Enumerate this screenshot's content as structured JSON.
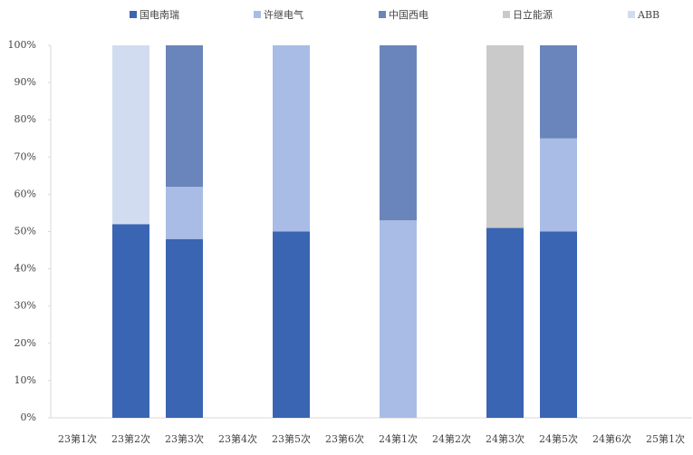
{
  "chart_data": {
    "type": "stacked_bar",
    "categories": [
      "23第1次",
      "23第2次",
      "23第3次",
      "23第4次",
      "23第5次",
      "23第6次",
      "24第1次",
      "24第2次",
      "24第3次",
      "24第5次",
      "24第6次",
      "25第1次"
    ],
    "series": [
      {
        "name": "国电南瑞",
        "color": "#3a65b3",
        "values": [
          0,
          52,
          48,
          0,
          50,
          0,
          0,
          0,
          51,
          50,
          0,
          0
        ]
      },
      {
        "name": "许继电气",
        "color": "#a8bce6",
        "values": [
          0,
          0,
          14,
          0,
          50,
          0,
          53,
          0,
          0,
          25,
          0,
          0
        ]
      },
      {
        "name": "中国西电",
        "color": "#6a85bb",
        "values": [
          0,
          0,
          38,
          0,
          0,
          0,
          47,
          0,
          0,
          25,
          0,
          0
        ]
      },
      {
        "name": "日立能源",
        "color": "#cbcacb",
        "values": [
          0,
          0,
          0,
          0,
          0,
          0,
          0,
          0,
          49,
          0,
          0,
          0
        ]
      },
      {
        "name": "ABB",
        "color": "#d2dcf1",
        "values": [
          0,
          48,
          0,
          0,
          0,
          0,
          0,
          0,
          0,
          0,
          0,
          0
        ]
      }
    ],
    "ylim": [
      0,
      100
    ],
    "yticks": [
      {
        "value": 0,
        "label": "0%"
      },
      {
        "value": 10,
        "label": "10%"
      },
      {
        "value": 20,
        "label": "20%"
      },
      {
        "value": 30,
        "label": "30%"
      },
      {
        "value": 40,
        "label": "40%"
      },
      {
        "value": 50,
        "label": "50%"
      },
      {
        "value": 60,
        "label": "60%"
      },
      {
        "value": 70,
        "label": "70%"
      },
      {
        "value": 80,
        "label": "80%"
      },
      {
        "value": 90,
        "label": "90%"
      },
      {
        "value": 100,
        "label": "100%"
      }
    ],
    "legend": "top"
  }
}
